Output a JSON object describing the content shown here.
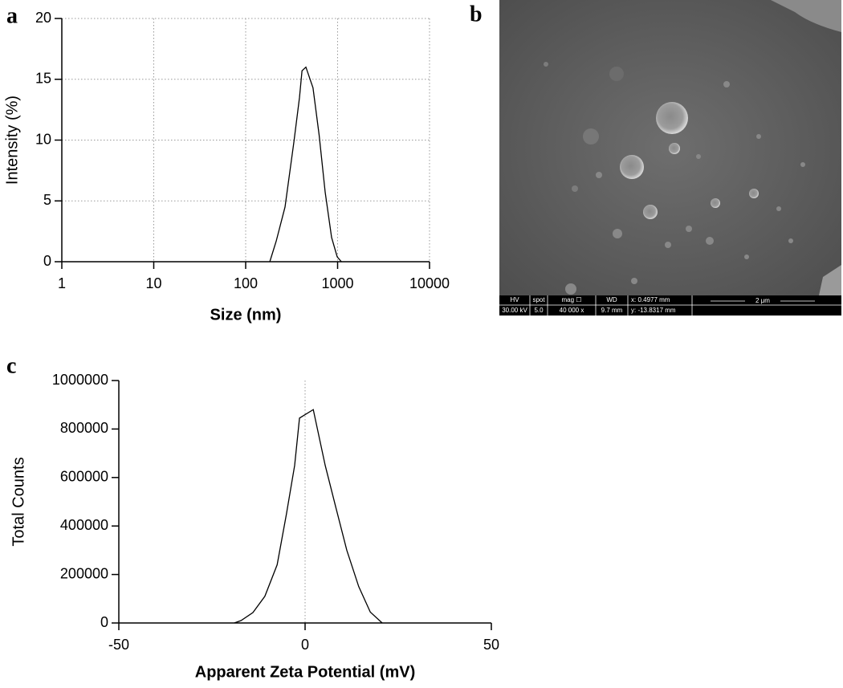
{
  "panel_labels": [
    "a",
    "b",
    "c"
  ],
  "chart_data": [
    {
      "type": "line",
      "xscale": "log",
      "x": [
        183,
        215,
        268,
        334,
        385,
        410,
        452,
        540,
        630,
        733,
        860,
        990,
        1100
      ],
      "values": [
        0,
        1.7,
        4.5,
        9.8,
        13.5,
        15.7,
        16,
        14.3,
        10.4,
        5.7,
        2,
        0.4,
        0
      ],
      "color": "#000000",
      "xlim": [
        1,
        10000
      ],
      "xticks": [
        1,
        10,
        100,
        1000,
        10000
      ],
      "ylim": [
        0,
        20
      ],
      "yticks": [
        0,
        5,
        10,
        15,
        20
      ],
      "xlabel": "Size (nm)",
      "ylabel": "Intensity (%)",
      "grid": true
    },
    {
      "type": "line",
      "xscale": "linear",
      "x": [
        -19,
        -17.2,
        -14,
        -10.8,
        -7.5,
        -5,
        -2.8,
        -1.5,
        2.2,
        5.4,
        8.2,
        11.2,
        14.4,
        17.5,
        20.7
      ],
      "values": [
        0,
        10000,
        43000,
        110000,
        240000,
        450000,
        650000,
        845000,
        880000,
        650000,
        480000,
        300000,
        150000,
        45000,
        0
      ],
      "color": "#000000",
      "xlim": [
        -50,
        50
      ],
      "xticks": [
        -50,
        0,
        50
      ],
      "ylim": [
        0,
        1000000
      ],
      "yticks": [
        0,
        200000,
        400000,
        600000,
        800000,
        1000000
      ],
      "xlabel": "Apparent Zeta Potential (mV)",
      "ylabel": "Total  Counts",
      "grid": false,
      "reference_line_x": 0
    }
  ],
  "micrograph": {
    "info_rows": [
      [
        "HV",
        "spot",
        "mag ☐",
        "WD",
        "x: 0.4977 mm"
      ],
      [
        "30.00 kV",
        "5.0",
        "40 000 x",
        "9.7 mm",
        "y: -13.8317 mm"
      ]
    ],
    "scale_bar": "2 μm"
  }
}
